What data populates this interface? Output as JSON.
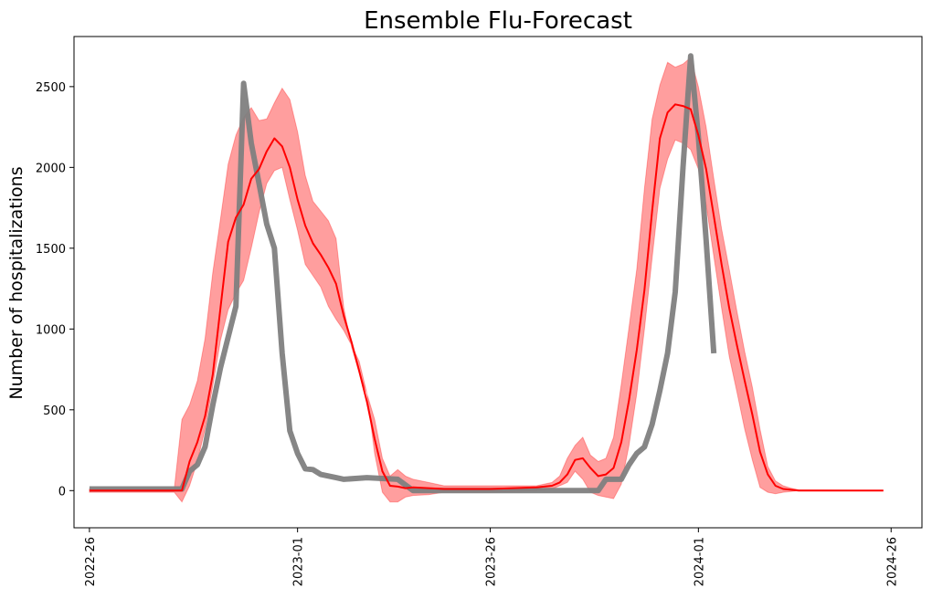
{
  "chart_data": {
    "type": "line",
    "title": "Ensemble Flu-Forecast",
    "xlabel": "",
    "ylabel": "Number of hospitalizations",
    "x_type": "date-week",
    "xlim": [
      "2022-W24",
      "2024-W30"
    ],
    "ylim": [
      -230,
      2810
    ],
    "x_ticks": [
      "2022-26",
      "2023-01",
      "2023-26",
      "2024-01",
      "2024-26"
    ],
    "y_ticks": [
      0,
      500,
      1000,
      1500,
      2000,
      2500
    ],
    "grid": false,
    "legend": "none",
    "colors": {
      "observed": "#808080",
      "forecast": "#ff0000",
      "interval": "#ff9999"
    },
    "observed": {
      "points": [
        [
          "2022-W26",
          10
        ],
        [
          "2022-W38",
          10
        ],
        [
          "2022-W39",
          120
        ],
        [
          "2022-W40",
          160
        ],
        [
          "2022-W41",
          270
        ],
        [
          "2022-W42",
          530
        ],
        [
          "2022-W43",
          760
        ],
        [
          "2022-W44",
          950
        ],
        [
          "2022-W45",
          1140
        ],
        [
          "2022-W46",
          2520
        ],
        [
          "2022-W47",
          2150
        ],
        [
          "2022-W48",
          1900
        ],
        [
          "2022-W49",
          1650
        ],
        [
          "2022-W50",
          1500
        ],
        [
          "2022-W51",
          850
        ],
        [
          "2022-W52",
          370
        ],
        [
          "2023-W01",
          230
        ],
        [
          "2023-W02",
          135
        ],
        [
          "2023-W03",
          130
        ],
        [
          "2023-W04",
          100
        ],
        [
          "2023-W06",
          80
        ],
        [
          "2023-W07",
          70
        ],
        [
          "2023-W10",
          80
        ],
        [
          "2023-W14",
          70
        ],
        [
          "2023-W16",
          0
        ],
        [
          "2023-W34",
          0
        ],
        [
          "2023-W40",
          0
        ],
        [
          "2023-W41",
          70
        ],
        [
          "2023-W42",
          70
        ],
        [
          "2023-W43",
          70
        ],
        [
          "2023-W44",
          160
        ],
        [
          "2023-W45",
          230
        ],
        [
          "2023-W46",
          270
        ],
        [
          "2023-W47",
          410
        ],
        [
          "2023-W48",
          620
        ],
        [
          "2023-W49",
          850
        ],
        [
          "2023-W50",
          1230
        ],
        [
          "2023-W51",
          2000
        ],
        [
          "2023-W52",
          2690
        ],
        [
          "2024-W01",
          2190
        ],
        [
          "2024-W02",
          1550
        ],
        [
          "2024-W03",
          850
        ]
      ]
    },
    "forecast": {
      "points": [
        [
          "2022-W26",
          0
        ],
        [
          "2022-W38",
          0
        ],
        [
          "2022-W39",
          180
        ],
        [
          "2022-W40",
          300
        ],
        [
          "2022-W41",
          460
        ],
        [
          "2022-W42",
          720
        ],
        [
          "2022-W43",
          1130
        ],
        [
          "2022-W44",
          1540
        ],
        [
          "2022-W45",
          1690
        ],
        [
          "2022-W46",
          1770
        ],
        [
          "2022-W47",
          1930
        ],
        [
          "2022-W48",
          1990
        ],
        [
          "2022-W49",
          2100
        ],
        [
          "2022-W50",
          2180
        ],
        [
          "2022-W51",
          2130
        ],
        [
          "2022-W52",
          2000
        ],
        [
          "2023-W01",
          1800
        ],
        [
          "2023-W02",
          1640
        ],
        [
          "2023-W03",
          1530
        ],
        [
          "2023-W04",
          1460
        ],
        [
          "2023-W05",
          1380
        ],
        [
          "2023-W06",
          1280
        ],
        [
          "2023-W07",
          1080
        ],
        [
          "2023-W08",
          920
        ],
        [
          "2023-W09",
          740
        ],
        [
          "2023-W10",
          550
        ],
        [
          "2023-W11",
          320
        ],
        [
          "2023-W12",
          120
        ],
        [
          "2023-W13",
          30
        ],
        [
          "2023-W14",
          25
        ],
        [
          "2023-W15",
          15
        ],
        [
          "2023-W16",
          20
        ],
        [
          "2023-W18",
          15
        ],
        [
          "2023-W20",
          10
        ],
        [
          "2023-W26",
          10
        ],
        [
          "2023-W32",
          20
        ],
        [
          "2023-W34",
          30
        ],
        [
          "2023-W35",
          50
        ],
        [
          "2023-W36",
          100
        ],
        [
          "2023-W37",
          190
        ],
        [
          "2023-W38",
          200
        ],
        [
          "2023-W39",
          140
        ],
        [
          "2023-W40",
          90
        ],
        [
          "2023-W41",
          100
        ],
        [
          "2023-W42",
          140
        ],
        [
          "2023-W43",
          300
        ],
        [
          "2023-W44",
          560
        ],
        [
          "2023-W45",
          870
        ],
        [
          "2023-W46",
          1240
        ],
        [
          "2023-W47",
          1730
        ],
        [
          "2023-W48",
          2180
        ],
        [
          "2023-W49",
          2340
        ],
        [
          "2023-W50",
          2390
        ],
        [
          "2023-W51",
          2380
        ],
        [
          "2023-W52",
          2360
        ],
        [
          "2024-W01",
          2200
        ],
        [
          "2024-W02",
          1990
        ],
        [
          "2024-W03",
          1700
        ],
        [
          "2024-W04",
          1400
        ],
        [
          "2024-W05",
          1130
        ],
        [
          "2024-W06",
          900
        ],
        [
          "2024-W07",
          680
        ],
        [
          "2024-W08",
          470
        ],
        [
          "2024-W09",
          240
        ],
        [
          "2024-W10",
          100
        ],
        [
          "2024-W11",
          30
        ],
        [
          "2024-W12",
          10
        ],
        [
          "2024-W13",
          5
        ],
        [
          "2024-W14",
          0
        ],
        [
          "2024-W25",
          0
        ]
      ]
    },
    "interval": {
      "points": [
        [
          "2022-W26",
          -10,
          10
        ],
        [
          "2022-W37",
          -10,
          10
        ],
        [
          "2022-W38",
          -70,
          440
        ],
        [
          "2022-W39",
          30,
          530
        ],
        [
          "2022-W40",
          180,
          680
        ],
        [
          "2022-W41",
          380,
          940
        ],
        [
          "2022-W42",
          650,
          1350
        ],
        [
          "2022-W43",
          930,
          1680
        ],
        [
          "2022-W44",
          1120,
          2020
        ],
        [
          "2022-W45",
          1220,
          2200
        ],
        [
          "2022-W46",
          1300,
          2310
        ],
        [
          "2022-W47",
          1500,
          2370
        ],
        [
          "2022-W48",
          1720,
          2290
        ],
        [
          "2022-W49",
          1900,
          2300
        ],
        [
          "2022-W50",
          1980,
          2400
        ],
        [
          "2022-W51",
          2000,
          2490
        ],
        [
          "2022-W52",
          1800,
          2420
        ],
        [
          "2023-W01",
          1610,
          2220
        ],
        [
          "2023-W02",
          1400,
          1950
        ],
        [
          "2023-W03",
          1330,
          1790
        ],
        [
          "2023-W04",
          1260,
          1730
        ],
        [
          "2023-W05",
          1140,
          1670
        ],
        [
          "2023-W06",
          1060,
          1560
        ],
        [
          "2023-W07",
          990,
          1130
        ],
        [
          "2023-W08",
          900,
          890
        ],
        [
          "2023-W09",
          800,
          730
        ],
        [
          "2023-W10",
          600,
          600
        ],
        [
          "2023-W11",
          230,
          440
        ],
        [
          "2023-W12",
          -10,
          200
        ],
        [
          "2023-W13",
          -70,
          90
        ],
        [
          "2023-W14",
          -70,
          130
        ],
        [
          "2023-W15",
          -40,
          90
        ],
        [
          "2023-W16",
          -30,
          70
        ],
        [
          "2023-W18",
          -25,
          50
        ],
        [
          "2023-W20",
          -10,
          30
        ],
        [
          "2023-W26",
          -10,
          30
        ],
        [
          "2023-W32",
          0,
          30
        ],
        [
          "2023-W34",
          10,
          50
        ],
        [
          "2023-W35",
          30,
          90
        ],
        [
          "2023-W36",
          50,
          200
        ],
        [
          "2023-W37",
          120,
          280
        ],
        [
          "2023-W38",
          70,
          330
        ],
        [
          "2023-W39",
          -10,
          220
        ],
        [
          "2023-W40",
          -30,
          180
        ],
        [
          "2023-W41",
          -40,
          200
        ],
        [
          "2023-W42",
          -50,
          330
        ],
        [
          "2023-W43",
          40,
          660
        ],
        [
          "2023-W44",
          280,
          1010
        ],
        [
          "2023-W45",
          600,
          1370
        ],
        [
          "2023-W46",
          1000,
          1870
        ],
        [
          "2023-W47",
          1440,
          2300
        ],
        [
          "2023-W48",
          1870,
          2510
        ],
        [
          "2023-W49",
          2050,
          2650
        ],
        [
          "2023-W50",
          2170,
          2620
        ],
        [
          "2023-W51",
          2150,
          2640
        ],
        [
          "2023-W52",
          2110,
          2680
        ],
        [
          "2024-W01",
          1990,
          2500
        ],
        [
          "2024-W02",
          1770,
          2250
        ],
        [
          "2024-W03",
          1450,
          1930
        ],
        [
          "2024-W04",
          1130,
          1620
        ],
        [
          "2024-W05",
          830,
          1370
        ],
        [
          "2024-W06",
          610,
          1110
        ],
        [
          "2024-W07",
          380,
          860
        ],
        [
          "2024-W08",
          190,
          640
        ],
        [
          "2024-W09",
          20,
          380
        ],
        [
          "2024-W10",
          -10,
          150
        ],
        [
          "2024-W11",
          -20,
          60
        ],
        [
          "2024-W12",
          -10,
          30
        ],
        [
          "2024-W13",
          -5,
          15
        ],
        [
          "2024-W14",
          0,
          5
        ],
        [
          "2024-W25",
          0,
          0
        ]
      ]
    }
  }
}
